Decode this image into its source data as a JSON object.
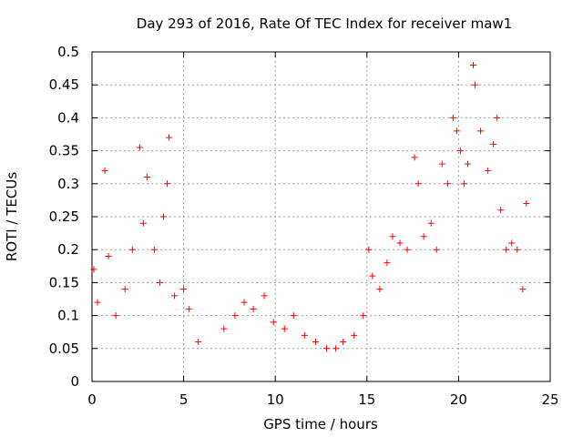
{
  "chart_data": {
    "type": "scatter",
    "title": "Day 293 of 2016, Rate Of TEC Index for receiver maw1",
    "xlabel": "GPS time / hours",
    "ylabel": "ROTI / TECUs",
    "xlim": [
      0,
      25
    ],
    "ylim": [
      0,
      0.5
    ],
    "xticks": [
      0,
      5,
      10,
      15,
      20,
      25
    ],
    "yticks": [
      0,
      0.05,
      0.1,
      0.15,
      0.2,
      0.25,
      0.3,
      0.35,
      0.4,
      0.45,
      0.5
    ],
    "xtick_labels": [
      "0",
      "5",
      "10",
      "15",
      "20",
      "25"
    ],
    "ytick_labels": [
      "0",
      "0.05",
      "0.1",
      "0.15",
      "0.2",
      "0.25",
      "0.3",
      "0.35",
      "0.4",
      "0.45",
      "0.5"
    ],
    "grid": true,
    "marker": "+",
    "marker_color": "#ff0000",
    "series": [
      {
        "name": "ROTI",
        "x": [
          0.1,
          0.3,
          0.7,
          0.9,
          1.3,
          1.8,
          2.2,
          2.6,
          2.8,
          3.0,
          3.4,
          3.7,
          3.9,
          4.1,
          4.2,
          4.5,
          5.0,
          5.3,
          5.8,
          7.2,
          7.8,
          8.3,
          8.8,
          9.4,
          9.9,
          10.5,
          11.0,
          11.6,
          12.2,
          12.8,
          13.3,
          13.7,
          14.3,
          14.8,
          15.1,
          15.3,
          15.7,
          16.1,
          16.4,
          16.8,
          17.2,
          17.6,
          17.8,
          18.1,
          18.5,
          18.8,
          19.1,
          19.4,
          19.7,
          19.9,
          20.1,
          20.3,
          20.5,
          20.8,
          20.9,
          21.2,
          21.6,
          21.9,
          22.1,
          22.3,
          22.6,
          22.9,
          23.2,
          23.5,
          23.7
        ],
        "y": [
          0.17,
          0.12,
          0.32,
          0.19,
          0.1,
          0.14,
          0.2,
          0.355,
          0.24,
          0.31,
          0.2,
          0.15,
          0.25,
          0.3,
          0.37,
          0.13,
          0.14,
          0.11,
          0.06,
          0.08,
          0.1,
          0.12,
          0.11,
          0.13,
          0.09,
          0.08,
          0.1,
          0.07,
          0.06,
          0.05,
          0.05,
          0.06,
          0.07,
          0.1,
          0.2,
          0.16,
          0.14,
          0.18,
          0.22,
          0.21,
          0.2,
          0.34,
          0.3,
          0.22,
          0.24,
          0.2,
          0.33,
          0.3,
          0.4,
          0.38,
          0.35,
          0.3,
          0.33,
          0.48,
          0.45,
          0.38,
          0.32,
          0.36,
          0.4,
          0.26,
          0.2,
          0.21,
          0.2,
          0.14,
          0.27
        ]
      }
    ]
  }
}
